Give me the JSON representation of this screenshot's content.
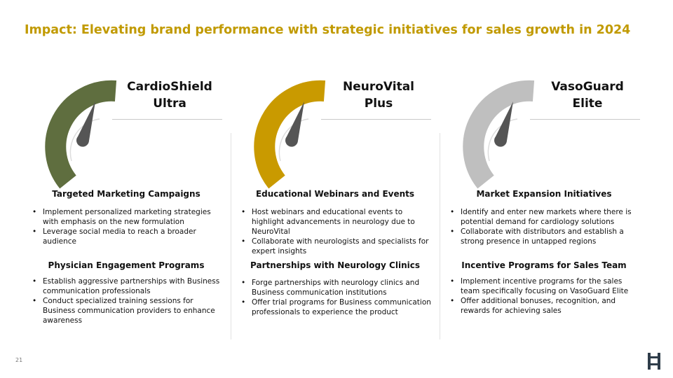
{
  "title": "Impact: Elevating brand performance with strategic initiatives for sales growth in 2024",
  "colors": {
    "title": "#c19a00",
    "green": "#5f6e3f",
    "gold": "#c99a00",
    "gray": "#bfbfbf",
    "needle": "#555555",
    "logo": "#2f3d4a"
  },
  "columns": [
    {
      "brand_line1": "CardioShield",
      "brand_line2": "Ultra",
      "gauge_color": "green",
      "section1": {
        "heading": "Targeted Marketing Campaigns",
        "bullets": [
          "Implement personalized marketing strategies with emphasis on the new formulation",
          "Leverage social media to reach a broader audience"
        ]
      },
      "section2": {
        "heading": "Physician Engagement Programs",
        "bullets": [
          "Establish aggressive partnerships with Business communication professionals",
          "Conduct specialized training sessions for Business communication providers to enhance awareness"
        ]
      }
    },
    {
      "brand_line1": "NeuroVital",
      "brand_line2": "Plus",
      "gauge_color": "gold",
      "section1": {
        "heading": "Educational Webinars and Events",
        "bullets": [
          "Host webinars and educational events to highlight advancements in neurology due to NeuroVital",
          "Collaborate with neurologists and specialists for expert insights"
        ]
      },
      "section2": {
        "heading": "Partnerships with Neurology Clinics",
        "bullets": [
          "Forge partnerships with neurology clinics and Business communication institutions",
          "Offer trial programs for Business communication professionals to experience the product"
        ]
      }
    },
    {
      "brand_line1": "VasoGuard",
      "brand_line2": "Elite",
      "gauge_color": "gray",
      "section1": {
        "heading": "Market Expansion Initiatives",
        "bullets": [
          "Identify and enter new markets where there is potential demand for cardiology solutions",
          "Collaborate with distributors and establish a strong presence in untapped regions"
        ]
      },
      "section2": {
        "heading": "Incentive Programs for Sales Team",
        "bullets": [
          "Implement incentive programs for the sales team specifically focusing on VasoGuard Elite",
          "Offer additional bonuses, recognition, and rewards for achieving sales"
        ]
      }
    }
  ],
  "page_number": "21",
  "logo_icon": "hh-logo-icon"
}
